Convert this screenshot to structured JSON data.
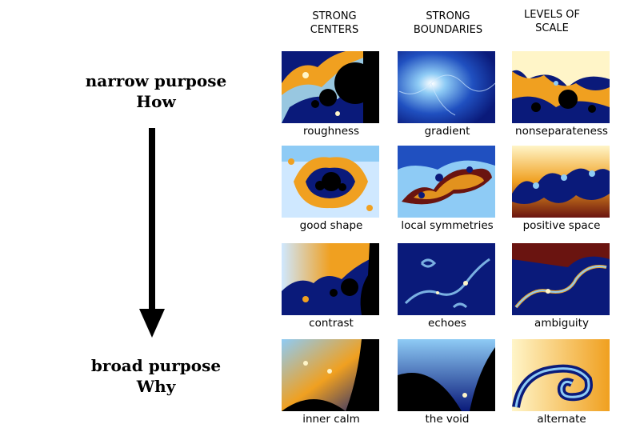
{
  "purpose": {
    "top": {
      "line1": "narrow purpose",
      "line2": "How"
    },
    "bottom": {
      "line1": "broad purpose",
      "line2": "Why"
    }
  },
  "columns": [
    {
      "line1": "STRONG",
      "line2": "CENTERS"
    },
    {
      "line1": "STRONG",
      "line2": "BOUNDARIES"
    },
    {
      "line1": "LEVELS OF",
      "line2": "SCALE"
    }
  ],
  "grid": {
    "rows": [
      [
        {
          "caption": "roughness"
        },
        {
          "caption": "gradient"
        },
        {
          "caption": "nonseparateness"
        }
      ],
      [
        {
          "caption": "good shape"
        },
        {
          "caption": "local symmetries"
        },
        {
          "caption": "positive space"
        }
      ],
      [
        {
          "caption": "contrast"
        },
        {
          "caption": "echoes"
        },
        {
          "caption": "ambiguity"
        }
      ],
      [
        {
          "caption": "inner calm"
        },
        {
          "caption": "the void"
        },
        {
          "caption": "alternate"
        }
      ]
    ]
  },
  "colors": {
    "arrow": "#000000",
    "deep_blue": "#0a1a7a",
    "light_blue": "#8ecbf5",
    "orange": "#f0a020",
    "dark_red": "#6a1410",
    "cream": "#fff5c8",
    "black": "#000000"
  }
}
